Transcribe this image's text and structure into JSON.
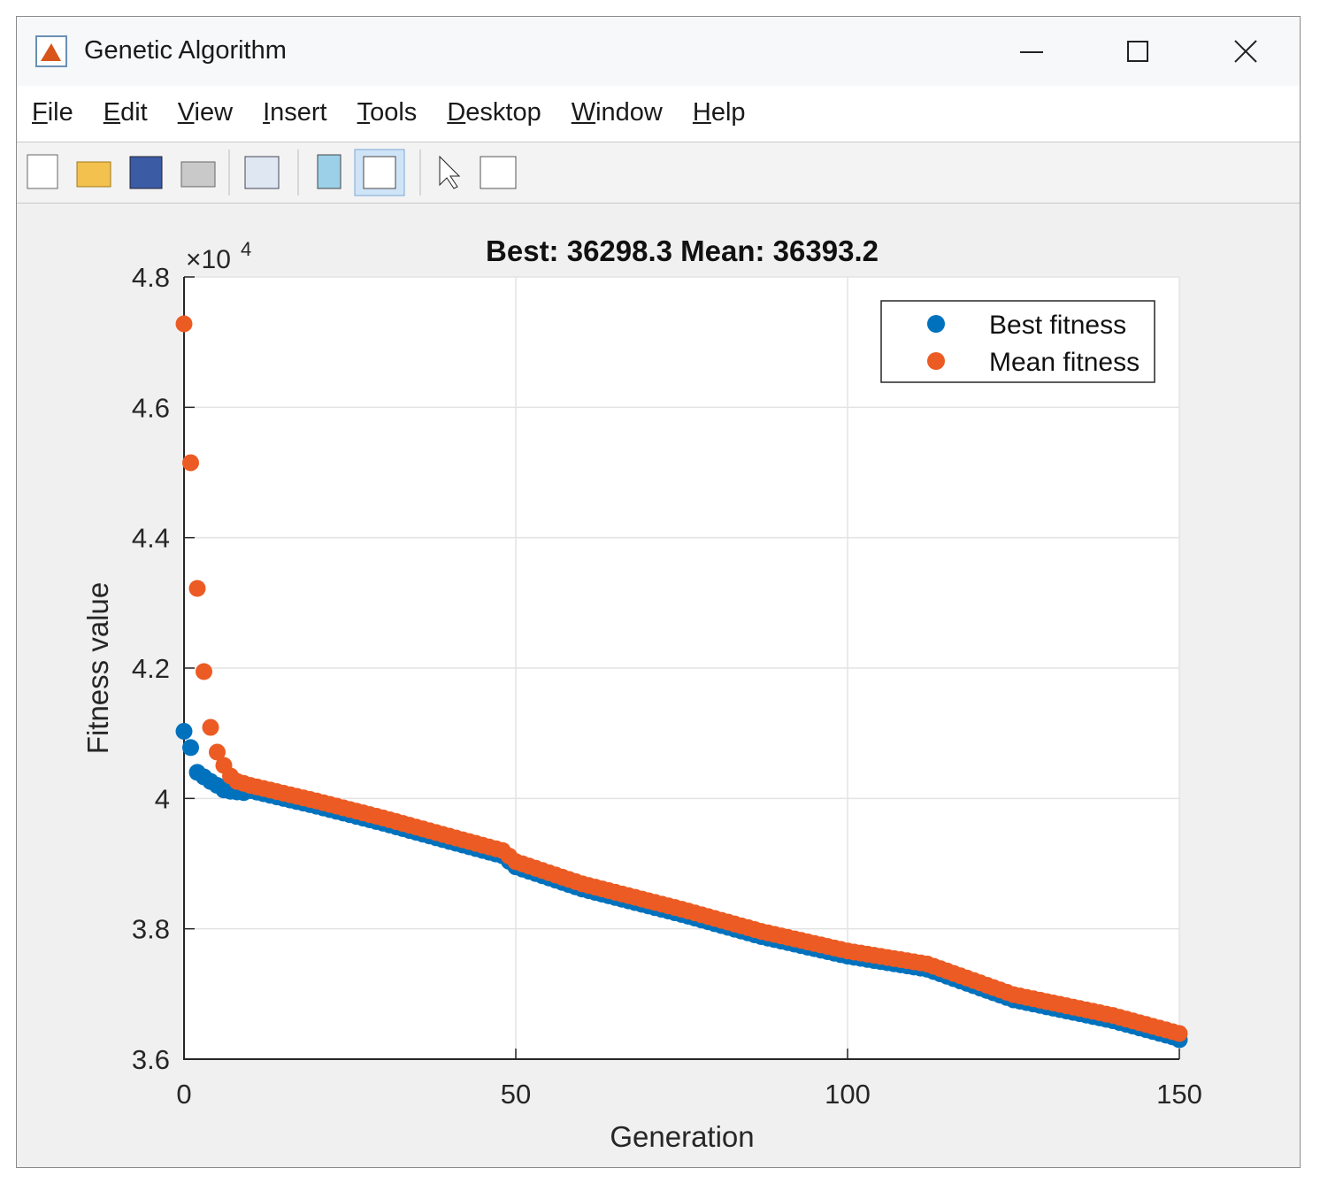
{
  "window": {
    "title": "Genetic Algorithm",
    "menu": [
      "File",
      "Edit",
      "View",
      "Insert",
      "Tools",
      "Desktop",
      "Window",
      "Help"
    ]
  },
  "chart_data": {
    "type": "scatter",
    "title": "Best: 36298.3 Mean: 36393.2",
    "x_label": "Generation",
    "y_label": "Fitness value",
    "y_scale_base": "×10",
    "y_scale_power": "4",
    "xlim": [
      0,
      150
    ],
    "xticks": [
      0,
      50,
      100,
      150
    ],
    "ylim": [
      36000,
      48000
    ],
    "yticks": [
      {
        "value": 36000,
        "label": "3.6"
      },
      {
        "value": 38000,
        "label": "3.8"
      },
      {
        "value": 40000,
        "label": "4"
      },
      {
        "value": 42000,
        "label": "4.2"
      },
      {
        "value": 44000,
        "label": "4.4"
      },
      {
        "value": 46000,
        "label": "4.6"
      },
      {
        "value": 48000,
        "label": "4.8"
      }
    ],
    "grid": true,
    "legend_location": "northeast",
    "x": [
      0,
      1,
      2,
      3,
      4,
      5,
      6,
      7,
      8,
      9,
      10,
      11,
      12,
      13,
      14,
      15,
      16,
      17,
      18,
      19,
      20,
      21,
      22,
      23,
      24,
      25,
      26,
      27,
      28,
      29,
      30,
      31,
      32,
      33,
      34,
      35,
      36,
      37,
      38,
      39,
      40,
      41,
      42,
      43,
      44,
      45,
      46,
      47,
      48,
      49,
      50,
      51,
      52,
      53,
      54,
      55,
      56,
      57,
      58,
      59,
      60,
      61,
      62,
      63,
      64,
      65,
      66,
      67,
      68,
      69,
      70,
      71,
      72,
      73,
      74,
      75,
      76,
      77,
      78,
      79,
      80,
      81,
      82,
      83,
      84,
      85,
      86,
      87,
      88,
      89,
      90,
      91,
      92,
      93,
      94,
      95,
      96,
      97,
      98,
      99,
      100,
      101,
      102,
      103,
      104,
      105,
      106,
      107,
      108,
      109,
      110,
      111,
      112,
      113,
      114,
      115,
      116,
      117,
      118,
      119,
      120,
      121,
      122,
      123,
      124,
      125,
      126,
      127,
      128,
      129,
      130,
      131,
      132,
      133,
      134,
      135,
      136,
      137,
      138,
      139,
      140,
      141,
      142,
      143,
      144,
      145,
      146,
      147,
      148,
      149,
      150
    ],
    "series": [
      {
        "name": "Best fitness",
        "color": "#0072bd",
        "values": [
          41030,
          40780,
          40400,
          40330,
          40260,
          40200,
          40130,
          40110,
          40100,
          40090,
          40120,
          40096,
          40072,
          40048,
          40024,
          40000,
          39976,
          39952,
          39928,
          39904,
          39880,
          39854,
          39828,
          39802,
          39776,
          39750,
          39724,
          39698,
          39672,
          39646,
          39620,
          39592,
          39564,
          39536,
          39508,
          39480,
          39452,
          39424,
          39396,
          39368,
          39340,
          39312,
          39285,
          39258,
          39230,
          39202,
          39175,
          39148,
          39120,
          39035,
          38950,
          38916,
          38882,
          38848,
          38814,
          38780,
          38746,
          38712,
          38678,
          38644,
          38610,
          38584,
          38558,
          38532,
          38506,
          38480,
          38454,
          38428,
          38402,
          38376,
          38350,
          38324,
          38298,
          38272,
          38246,
          38220,
          38192,
          38163,
          38135,
          38107,
          38078,
          38050,
          38022,
          37993,
          37965,
          37937,
          37908,
          37880,
          37857,
          37834,
          37811,
          37788,
          37765,
          37742,
          37718,
          37695,
          37672,
          37649,
          37626,
          37603,
          37580,
          37563,
          37547,
          37530,
          37513,
          37497,
          37480,
          37463,
          37447,
          37430,
          37413,
          37397,
          37380,
          37344,
          37308,
          37272,
          37235,
          37199,
          37163,
          37127,
          37090,
          37054,
          37018,
          36982,
          36946,
          36910,
          36889,
          36867,
          36846,
          36825,
          36803,
          36782,
          36761,
          36739,
          36718,
          36697,
          36675,
          36654,
          36633,
          36611,
          36590,
          36562,
          36535,
          36507,
          36479,
          36452,
          36424,
          36396,
          36369,
          36341,
          36298.3
        ]
      },
      {
        "name": "Mean fitness",
        "color": "#ec5b23",
        "values": [
          47281,
          45150,
          43222,
          41946,
          41090,
          40710,
          40507,
          40344,
          40260,
          40230,
          40200,
          40176,
          40152,
          40128,
          40104,
          40080,
          40056,
          40032,
          40008,
          39984,
          39960,
          39934,
          39908,
          39882,
          39856,
          39830,
          39804,
          39778,
          39752,
          39726,
          39700,
          39672,
          39644,
          39616,
          39588,
          39560,
          39532,
          39504,
          39476,
          39448,
          39420,
          39392,
          39365,
          39338,
          39310,
          39282,
          39255,
          39228,
          39200,
          39115,
          39030,
          38996,
          38962,
          38928,
          38894,
          38860,
          38826,
          38792,
          38758,
          38724,
          38690,
          38664,
          38638,
          38612,
          38586,
          38560,
          38534,
          38508,
          38482,
          38456,
          38430,
          38404,
          38378,
          38352,
          38326,
          38300,
          38272,
          38243,
          38215,
          38187,
          38158,
          38130,
          38102,
          38073,
          38045,
          38017,
          37988,
          37960,
          37937,
          37914,
          37891,
          37868,
          37845,
          37822,
          37798,
          37775,
          37752,
          37729,
          37706,
          37683,
          37660,
          37643,
          37627,
          37610,
          37593,
          37577,
          37560,
          37543,
          37527,
          37510,
          37493,
          37477,
          37460,
          37424,
          37388,
          37352,
          37315,
          37279,
          37243,
          37207,
          37170,
          37134,
          37098,
          37062,
          37026,
          36990,
          36969,
          36947,
          36926,
          36905,
          36883,
          36862,
          36841,
          36819,
          36798,
          36777,
          36755,
          36734,
          36713,
          36691,
          36670,
          36642,
          36615,
          36587,
          36559,
          36532,
          36504,
          36476,
          36449,
          36421,
          36393.2
        ]
      }
    ]
  }
}
